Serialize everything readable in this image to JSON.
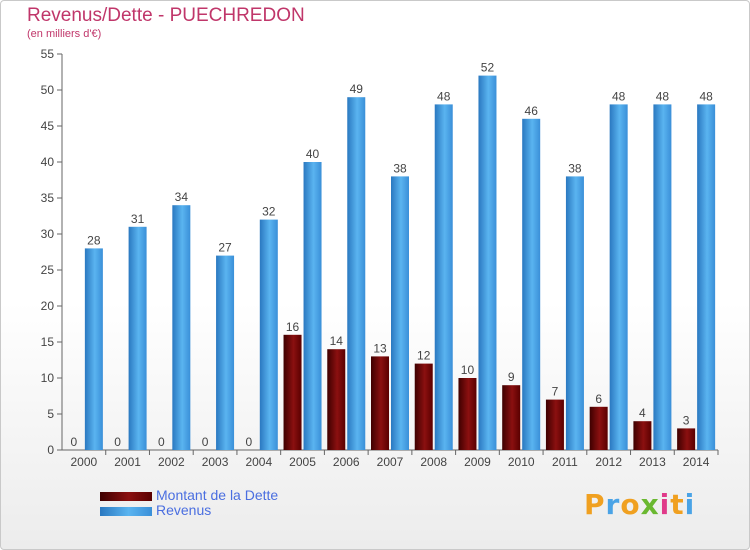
{
  "chart_data": {
    "type": "bar",
    "title": "Revenus/Dette - PUECHREDON",
    "subtitle": "(en milliers d'€)",
    "categories": [
      "2000",
      "2001",
      "2002",
      "2003",
      "2004",
      "2005",
      "2006",
      "2007",
      "2008",
      "2009",
      "2010",
      "2011",
      "2012",
      "2013",
      "2014"
    ],
    "series": [
      {
        "name": "Montant de la Dette",
        "color": "#8b1010",
        "values": [
          0,
          0,
          0,
          0,
          0,
          16,
          14,
          13,
          12,
          10,
          9,
          7,
          6,
          4,
          3
        ]
      },
      {
        "name": "Revenus",
        "color": "#4aa3e6",
        "values": [
          28,
          31,
          34,
          27,
          32,
          40,
          49,
          38,
          48,
          52,
          46,
          38,
          48,
          48,
          48
        ]
      }
    ],
    "ylim": [
      0,
      55
    ],
    "yticks": [
      0,
      5,
      10,
      15,
      20,
      25,
      30,
      35,
      40,
      45,
      50,
      55
    ],
    "grid": false,
    "legend": "bottom-left"
  },
  "logo": {
    "text": "Proxiti"
  }
}
